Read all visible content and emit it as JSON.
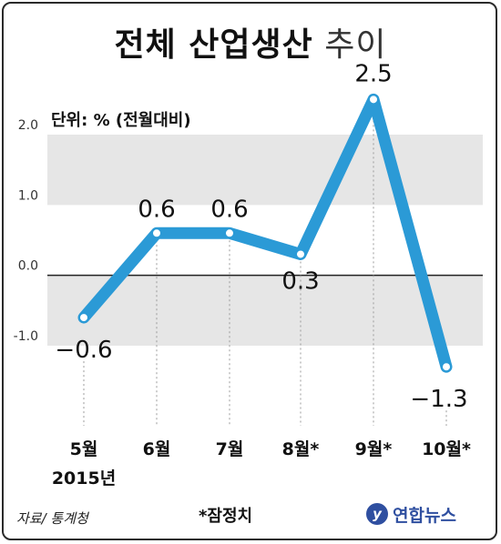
{
  "title": {
    "main": "전체 산업생산",
    "sub": "추이"
  },
  "unit_label": "단위: % (전월대비)",
  "footer": {
    "source": "자료/ 통계청",
    "note": "*잠정치",
    "logo_text": "연합뉴스",
    "logo_mark": "y"
  },
  "colors": {
    "line": "#2b9ad6",
    "band": "#e6e6e6",
    "marker": "#ffffff",
    "text": "#111111"
  },
  "chart_data": {
    "type": "line",
    "title": "전체 산업생산 추이",
    "ylabel": "단위: % (전월대비)",
    "categories": [
      "5월",
      "6월",
      "7월",
      "8월*",
      "9월*",
      "10월*"
    ],
    "category_sublabels": [
      "2015년",
      "",
      "",
      "",
      "",
      ""
    ],
    "values": [
      -0.6,
      0.6,
      0.6,
      0.3,
      2.5,
      -1.3
    ],
    "data_labels": [
      "−0.6",
      "0.6",
      "0.6",
      "0.3",
      "2.5",
      "−1.3"
    ],
    "yticks": [
      2.0,
      1.0,
      0.0,
      -1.0
    ],
    "ytick_labels": [
      "2.0",
      "1.0",
      "0.0",
      "-1.0"
    ],
    "ylim": [
      -1.0,
      2.0
    ],
    "shaded_bands": [
      [
        1.0,
        2.0
      ],
      [
        -1.0,
        0.0
      ]
    ],
    "grid": false,
    "legend": "none"
  }
}
